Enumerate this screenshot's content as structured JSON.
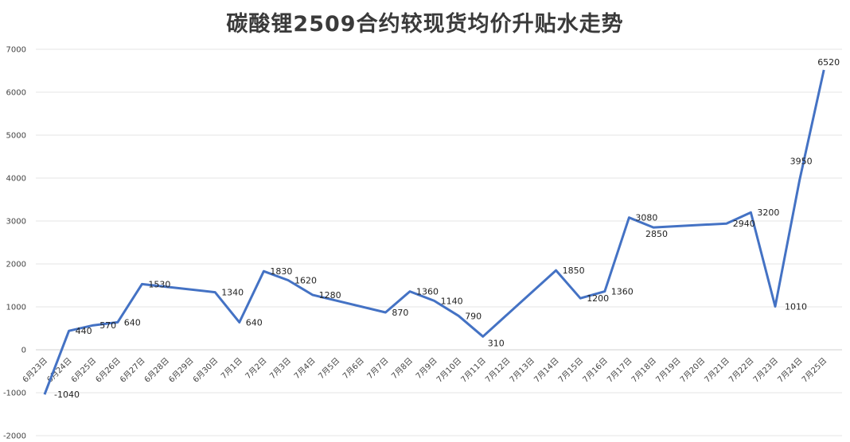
{
  "chart_data": {
    "type": "line",
    "title": "碳酸锂2509合约较现货均价升贴水走势",
    "xlabel": "",
    "ylabel": "",
    "ylim": [
      -2000,
      7000
    ],
    "yticks": [
      -2000,
      -1000,
      0,
      1000,
      2000,
      3000,
      4000,
      5000,
      6000,
      7000
    ],
    "grid": true,
    "legend": "none",
    "color": "#4472C4",
    "categories": [
      "6月23日",
      "6月24日",
      "6月25日",
      "6月26日",
      "6月27日",
      "6月28日",
      "6月29日",
      "6月30日",
      "7月1日",
      "7月2日",
      "7月3日",
      "7月4日",
      "7月5日",
      "7月6日",
      "7月7日",
      "7月8日",
      "7月9日",
      "7月10日",
      "7月11日",
      "7月12日",
      "7月13日",
      "7月14日",
      "7月15日",
      "7月16日",
      "7月17日",
      "7月18日",
      "7月19日",
      "7月20日",
      "7月21日",
      "7月22日",
      "7月23日",
      "7月24日",
      "7月25日"
    ],
    "series": [
      {
        "points": [
          {
            "x": "6月23日",
            "y": -1040,
            "label": "-1040"
          },
          {
            "x": "6月24日",
            "y": 440,
            "label": "440"
          },
          {
            "x": "6月25日",
            "y": 570,
            "label": "570"
          },
          {
            "x": "6月26日",
            "y": 640,
            "label": "640"
          },
          {
            "x": "6月27日",
            "y": 1530,
            "label": "1530"
          },
          {
            "x": "6月30日",
            "y": 1340,
            "label": "1340"
          },
          {
            "x": "7月1日",
            "y": 640,
            "label": "640"
          },
          {
            "x": "7月2日",
            "y": 1830,
            "label": "1830"
          },
          {
            "x": "7月3日",
            "y": 1620,
            "label": "1620"
          },
          {
            "x": "7月4日",
            "y": 1280,
            "label": "1280"
          },
          {
            "x": "7月7日",
            "y": 870,
            "label": "870"
          },
          {
            "x": "7月8日",
            "y": 1360,
            "label": "1360"
          },
          {
            "x": "7月9日",
            "y": 1140,
            "label": "1140"
          },
          {
            "x": "7月10日",
            "y": 790,
            "label": "790"
          },
          {
            "x": "7月11日",
            "y": 310,
            "label": "310"
          },
          {
            "x": "7月14日",
            "y": 1850,
            "label": "1850"
          },
          {
            "x": "7月15日",
            "y": 1200,
            "label": "1200"
          },
          {
            "x": "7月16日",
            "y": 1360,
            "label": "1360"
          },
          {
            "x": "7月17日",
            "y": 3080,
            "label": "3080"
          },
          {
            "x": "7月18日",
            "y": 2850,
            "label": "2850"
          },
          {
            "x": "7月21日",
            "y": 2940,
            "label": "2940"
          },
          {
            "x": "7月22日",
            "y": 3200,
            "label": "3200"
          },
          {
            "x": "7月23日",
            "y": 1010,
            "label": "1010"
          },
          {
            "x": "7月24日",
            "y": 3950,
            "label": "3950"
          },
          {
            "x": "7月25日",
            "y": 6520,
            "label": "6520"
          }
        ]
      }
    ]
  }
}
